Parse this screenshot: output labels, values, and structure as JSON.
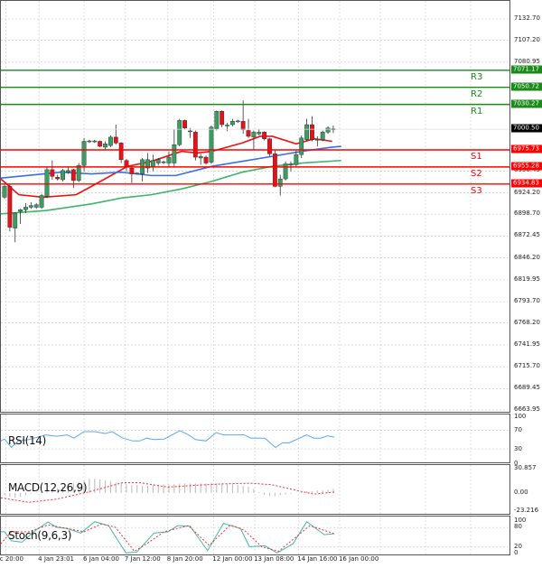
{
  "colors": {
    "bull": "#3c9d63",
    "bear": "#e8101a",
    "support": "#ff0000",
    "resistance": "#1a8a1a",
    "ma_fast": "#f01010",
    "ma_mid": "#3a6ee8",
    "ma_slow": "#3db56a",
    "rsi": "#5aa8f0",
    "macd_hist": "#b8b8b8",
    "signal": "#f03030",
    "stoch_main": "#3fb8a8",
    "current_price_bg": "#000000",
    "grid": "#c8c8c8"
  },
  "price_axis": {
    "labels": [
      "7132.70",
      "7107.20",
      "7080.95",
      "6950.45",
      "6924.20",
      "6898.70",
      "6872.45",
      "6846.20",
      "6819.95",
      "6793.70",
      "6768.20",
      "6741.95",
      "6715.70",
      "6689.45",
      "6663.95"
    ],
    "range": [
      6663.95,
      7132.7
    ]
  },
  "current_price": "7000.50",
  "levels": [
    {
      "name": "R3",
      "price": 7071.17,
      "tag": "7071.17",
      "type": "resistance"
    },
    {
      "name": "R2",
      "price": 7050.72,
      "tag": "7050.72",
      "type": "resistance"
    },
    {
      "name": "R1",
      "price": 7030.27,
      "tag": "7030.27",
      "type": "resistance"
    },
    {
      "name": "S1",
      "price": 6975.73,
      "tag": "6975.73",
      "type": "support"
    },
    {
      "name": "S2",
      "price": 6955.28,
      "tag": "6955.28",
      "type": "support"
    },
    {
      "name": "S3",
      "price": 6934.83,
      "tag": "6934.83",
      "type": "support"
    }
  ],
  "candles": [
    [
      6919,
      6935,
      6917,
      6932
    ],
    [
      6932,
      6935,
      6878,
      6883
    ],
    [
      6882,
      6901,
      6865,
      6900
    ],
    [
      6902,
      6905,
      6887,
      6904
    ],
    [
      6904,
      6912,
      6900,
      6907
    ],
    [
      6907,
      6913,
      6905,
      6909
    ],
    [
      6907,
      6912,
      6905,
      6910
    ],
    [
      6907,
      6923,
      6905,
      6921
    ],
    [
      6920,
      6955,
      6918,
      6952
    ],
    [
      6952,
      6963,
      6940,
      6944
    ],
    [
      6943,
      6946,
      6939,
      6941
    ],
    [
      6940,
      6953,
      6938,
      6951
    ],
    [
      6949,
      6955,
      6947,
      6951
    ],
    [
      6952,
      6953,
      6930,
      6939
    ],
    [
      6939,
      6960,
      6937,
      6957
    ],
    [
      6957,
      6990,
      6950,
      6986
    ],
    [
      6986,
      6988,
      6984,
      6986.5
    ],
    [
      6986,
      6988,
      6984,
      6986.5
    ],
    [
      6986,
      6987,
      6979,
      6980
    ],
    [
      6979,
      6986,
      6976,
      6983
    ],
    [
      6981,
      6993,
      6979,
      6991
    ],
    [
      6991,
      7006,
      6982,
      6984
    ],
    [
      6984,
      6985,
      6960,
      6964
    ],
    [
      6963,
      6965,
      6950,
      6956
    ],
    [
      6954,
      6956,
      6936,
      6947
    ],
    [
      6947,
      6949,
      6946,
      6948
    ],
    [
      6947,
      6966,
      6938,
      6964
    ],
    [
      6954,
      6972,
      6948,
      6964
    ],
    [
      6955,
      6970,
      6950,
      6963
    ],
    [
      6960,
      6966,
      6957,
      6964
    ],
    [
      6961,
      6963,
      6959,
      6961.5
    ],
    [
      6960,
      6974,
      6955,
      6967
    ],
    [
      6960,
      7000,
      6955,
      6982
    ],
    [
      6982,
      7013,
      6980,
      7011
    ],
    [
      7011,
      7012,
      7000,
      7002
    ],
    [
      6998,
      7002,
      6990,
      6998.5
    ],
    [
      6997,
      6999,
      6963,
      6967
    ],
    [
      6966,
      6971,
      6958,
      6968
    ],
    [
      6967,
      6969,
      6958,
      6960
    ],
    [
      6961,
      7005,
      6959,
      7003
    ],
    [
      7001,
      7023,
      6999,
      7022
    ],
    [
      7022,
      7023,
      7003,
      7006
    ],
    [
      7005,
      7008,
      6998,
      7005.5
    ],
    [
      7006,
      7013,
      7004,
      7010
    ],
    [
      7010,
      7012,
      7008,
      7010.5
    ],
    [
      7010,
      7035,
      6995,
      7000
    ],
    [
      6999,
      7013,
      6990,
      6992
    ],
    [
      6991,
      6999,
      6976,
      6997
    ],
    [
      6995,
      7000,
      6993,
      6997
    ],
    [
      6997,
      6998,
      6987,
      6989
    ],
    [
      6989,
      6990,
      6968,
      6971
    ],
    [
      6971,
      6976,
      6931,
      6932
    ],
    [
      6932,
      6946,
      6921,
      6941
    ],
    [
      6941,
      6962,
      6939,
      6959
    ],
    [
      6958,
      6962,
      6950,
      6958.5
    ],
    [
      6958,
      6975,
      6956,
      6970
    ],
    [
      6970,
      6993,
      6966,
      6990
    ],
    [
      6988,
      7013,
      6986,
      7006
    ],
    [
      7006,
      7016,
      6986,
      6988
    ],
    [
      6988,
      6992,
      6980,
      6988.5
    ],
    [
      6988,
      6999,
      6986,
      6997
    ],
    [
      6997,
      7004,
      6995,
      7002
    ],
    [
      7001,
      7005,
      6996,
      7000
    ]
  ],
  "moving_averages": [
    {
      "color_key": "ma_fast",
      "points": [
        [
          -0.7,
          6941
        ],
        [
          2.7,
          6922
        ],
        [
          7.3,
          6919
        ],
        [
          13.5,
          6922
        ],
        [
          16.4,
          6932
        ],
        [
          23.2,
          6956
        ],
        [
          27.7,
          6962
        ],
        [
          33.4,
          6974
        ],
        [
          36.3,
          6972
        ],
        [
          39.1,
          6974
        ],
        [
          44.8,
          6984
        ],
        [
          48.2,
          6992
        ],
        [
          50.5,
          6992
        ],
        [
          55,
          6983
        ],
        [
          58.4,
          6989
        ],
        [
          61.8,
          6986
        ]
      ]
    },
    {
      "color_key": "ma_mid",
      "points": [
        [
          -0.7,
          6942
        ],
        [
          10.7,
          6949
        ],
        [
          16.4,
          6947
        ],
        [
          22,
          6949
        ],
        [
          27.7,
          6945
        ],
        [
          32.3,
          6945
        ],
        [
          39.1,
          6956
        ],
        [
          44.8,
          6962
        ],
        [
          50.5,
          6968
        ],
        [
          56.1,
          6974
        ],
        [
          61.8,
          6979
        ],
        [
          63.5,
          6980
        ]
      ]
    },
    {
      "color_key": "ma_slow",
      "points": [
        [
          -0.7,
          6899
        ],
        [
          7.8,
          6903
        ],
        [
          16.4,
          6911
        ],
        [
          22,
          6918
        ],
        [
          27.7,
          6922
        ],
        [
          33.4,
          6929
        ],
        [
          39.1,
          6938
        ],
        [
          44.8,
          6949
        ],
        [
          50.5,
          6956
        ],
        [
          56.1,
          6960
        ],
        [
          63.5,
          6963
        ]
      ]
    }
  ],
  "rsi": {
    "label": "RSI(14)",
    "axis": [
      "100",
      "70",
      "30",
      "0"
    ],
    "levels": [
      100,
      70,
      30,
      0
    ],
    "points": [
      [
        -0.7,
        47
      ],
      [
        0,
        51
      ],
      [
        1.3,
        33
      ],
      [
        2.6,
        47
      ],
      [
        4.6,
        50
      ],
      [
        7.8,
        60
      ],
      [
        9.8,
        57
      ],
      [
        11.8,
        60
      ],
      [
        13.1,
        53
      ],
      [
        15,
        67
      ],
      [
        17,
        67
      ],
      [
        19,
        63
      ],
      [
        20.3,
        67
      ],
      [
        22.3,
        53
      ],
      [
        24.2,
        47
      ],
      [
        25.5,
        47
      ],
      [
        26.8,
        53
      ],
      [
        28.1,
        50
      ],
      [
        30.1,
        51
      ],
      [
        33.1,
        69
      ],
      [
        34.7,
        60
      ],
      [
        36,
        50
      ],
      [
        38,
        47
      ],
      [
        39.9,
        65
      ],
      [
        41.3,
        60
      ],
      [
        45.2,
        60
      ],
      [
        46.5,
        53
      ],
      [
        49.1,
        53
      ],
      [
        51.1,
        33
      ],
      [
        52.4,
        43
      ],
      [
        53.7,
        43
      ],
      [
        57,
        60
      ],
      [
        58.3,
        53
      ],
      [
        59.6,
        53
      ],
      [
        60.9,
        58
      ],
      [
        62.2,
        55
      ]
    ]
  },
  "macd": {
    "label": "MACD(12,26,9)",
    "axis": [
      "30.857",
      "0.00",
      "-23.216"
    ],
    "range": [
      -23.216,
      30.857
    ],
    "histogram": [
      -3,
      -5,
      -6,
      -5,
      -3,
      -1,
      1,
      2,
      3,
      4,
      6,
      8,
      10,
      12,
      14,
      16,
      18,
      18,
      17,
      16,
      15,
      13,
      12,
      11,
      10,
      10,
      9,
      9,
      10,
      10,
      11,
      11,
      11,
      12,
      12,
      12,
      12,
      12,
      12,
      13,
      12,
      12,
      11,
      11,
      10,
      9,
      8,
      5,
      1,
      -2,
      -4,
      -4,
      -3,
      -2,
      -1,
      0,
      1,
      2,
      2,
      3,
      3,
      4,
      5
    ],
    "signal": [
      [
        -0.7,
        -6.3
      ],
      [
        4.6,
        -12
      ],
      [
        9.8,
        -8
      ],
      [
        15.7,
        1
      ],
      [
        22.3,
        13
      ],
      [
        25.5,
        13
      ],
      [
        30.8,
        7.4
      ],
      [
        36,
        9.7
      ],
      [
        41.3,
        11.5
      ],
      [
        46.5,
        12.3
      ],
      [
        50.4,
        10.4
      ],
      [
        55.7,
        2.2
      ],
      [
        58.3,
        -1.5
      ],
      [
        62.2,
        1
      ]
    ]
  },
  "stoch": {
    "label": "Stoch(9,6,3)",
    "axis": [
      "100",
      "80",
      "20",
      "0"
    ],
    "levels": [
      100,
      80,
      20,
      0
    ],
    "main": [
      [
        -0.7,
        67
      ],
      [
        0,
        67
      ],
      [
        1.3,
        39
      ],
      [
        3.3,
        35
      ],
      [
        5.9,
        72
      ],
      [
        8.2,
        97
      ],
      [
        9.8,
        81
      ],
      [
        11.8,
        77
      ],
      [
        14.4,
        63
      ],
      [
        17,
        98
      ],
      [
        19.6,
        86
      ],
      [
        22.9,
        2
      ],
      [
        24.9,
        4
      ],
      [
        28.2,
        63
      ],
      [
        30.8,
        67
      ],
      [
        32.7,
        86
      ],
      [
        35,
        84
      ],
      [
        38.3,
        9
      ],
      [
        41.3,
        93
      ],
      [
        44.5,
        77
      ],
      [
        46.2,
        21
      ],
      [
        49.1,
        24
      ],
      [
        51.4,
        2
      ],
      [
        54.4,
        30
      ],
      [
        57,
        98
      ],
      [
        60.3,
        58
      ],
      [
        62.2,
        61
      ]
    ],
    "signal": [
      [
        -0.7,
        30
      ],
      [
        1.3,
        67
      ],
      [
        4.6,
        67
      ],
      [
        8.2,
        88
      ],
      [
        11.8,
        77
      ],
      [
        15,
        67
      ],
      [
        18.3,
        91
      ],
      [
        20.9,
        81
      ],
      [
        24.5,
        7
      ],
      [
        26.8,
        30
      ],
      [
        30.1,
        67
      ],
      [
        34.7,
        86
      ],
      [
        38.6,
        25
      ],
      [
        42.6,
        88
      ],
      [
        45.2,
        72
      ],
      [
        48.5,
        21
      ],
      [
        51.7,
        7
      ],
      [
        57.6,
        86
      ],
      [
        62.2,
        61
      ]
    ]
  },
  "time_axis": [
    {
      "label": "c 20:00",
      "bar": 0.3
    },
    {
      "label": "4 Jan 23:01",
      "bar": 6.5
    },
    {
      "label": "6 Jan 04:00",
      "bar": 15
    },
    {
      "label": "7 Jan 12:00",
      "bar": 22.8
    },
    {
      "label": "8 Jan 20:00",
      "bar": 30.8
    },
    {
      "label": "12 Jan 00:00",
      "bar": 39.4
    },
    {
      "label": "13 Jan 08:00",
      "bar": 47.2
    },
    {
      "label": "14 Jan 16:00",
      "bar": 55.4
    },
    {
      "label": "16 Jan 00:00",
      "bar": 63.2
    }
  ]
}
